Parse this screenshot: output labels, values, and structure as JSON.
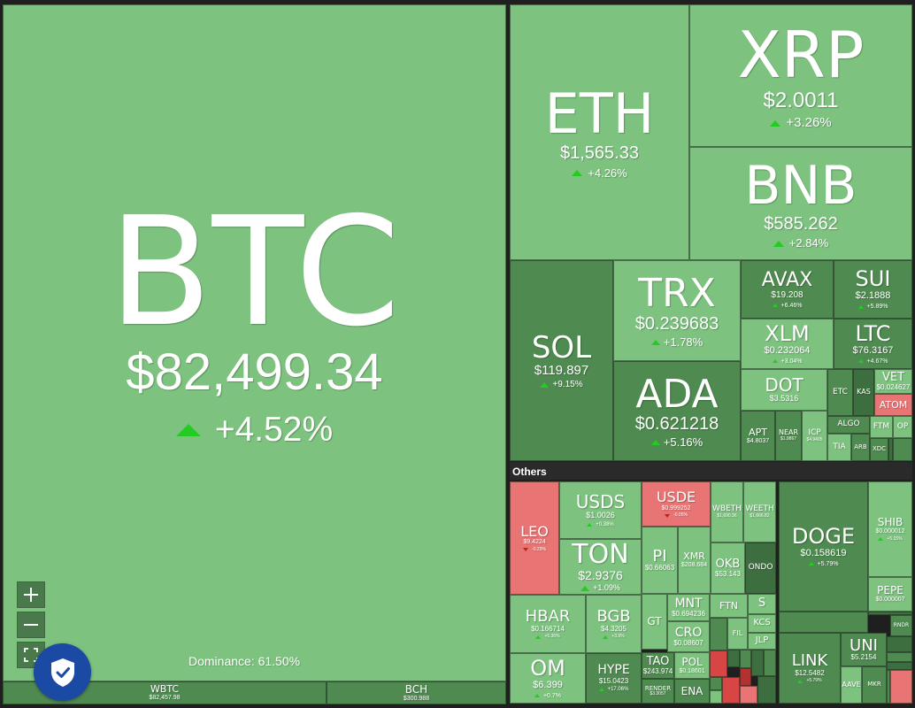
{
  "dominance_text": "Dominance: 61.50%",
  "others_label": "Others",
  "zoom": {
    "in_label": "+",
    "out_label": "−"
  },
  "colors": {
    "up_strong": "#7dc27f",
    "up_mid": "#4f8a50",
    "up_dark": "#3d6e3f",
    "down": "#e97474",
    "arrow_up": "#22cc22"
  },
  "tiles": [
    {
      "sym": "BTC",
      "price": "$82,499.34",
      "chg": "+4.52%",
      "dir": "up"
    },
    {
      "sym": "WBTC",
      "price": "$82,457.98",
      "chg": "",
      "dir": "up"
    },
    {
      "sym": "BCH",
      "price": "$300.988",
      "chg": "",
      "dir": "up"
    },
    {
      "sym": "ETH",
      "price": "$1,565.33",
      "chg": "+4.26%",
      "dir": "up"
    },
    {
      "sym": "XRP",
      "price": "$2.0011",
      "chg": "+3.26%",
      "dir": "up"
    },
    {
      "sym": "BNB",
      "price": "$585.262",
      "chg": "+2.84%",
      "dir": "up"
    },
    {
      "sym": "SOL",
      "price": "$119.897",
      "chg": "+9.15%",
      "dir": "up"
    },
    {
      "sym": "TRX",
      "price": "$0.239683",
      "chg": "+1.78%",
      "dir": "up"
    },
    {
      "sym": "ADA",
      "price": "$0.621218",
      "chg": "+5.16%",
      "dir": "up"
    },
    {
      "sym": "AVAX",
      "price": "$19.208",
      "chg": "+6.46%",
      "dir": "up"
    },
    {
      "sym": "SUI",
      "price": "$2.1888",
      "chg": "+5.89%",
      "dir": "up"
    },
    {
      "sym": "XLM",
      "price": "$0.232064",
      "chg": "+3.04%",
      "dir": "up"
    },
    {
      "sym": "LTC",
      "price": "$76.3167",
      "chg": "+4.67%",
      "dir": "up"
    },
    {
      "sym": "DOT",
      "price": "$3.5316",
      "chg": "",
      "dir": "up"
    },
    {
      "sym": "ETC",
      "price": "",
      "chg": "",
      "dir": "up"
    },
    {
      "sym": "KAS",
      "price": "",
      "chg": "",
      "dir": "up"
    },
    {
      "sym": "VET",
      "price": "$0.024627",
      "chg": "",
      "dir": "up"
    },
    {
      "sym": "ATOM",
      "price": "",
      "chg": "",
      "dir": "down"
    },
    {
      "sym": "APT",
      "price": "$4.8037",
      "chg": "",
      "dir": "up"
    },
    {
      "sym": "NEAR",
      "price": "$1.9867",
      "chg": "",
      "dir": "up"
    },
    {
      "sym": "ICP",
      "price": "$4.9405",
      "chg": "",
      "dir": "up"
    },
    {
      "sym": "ALGO",
      "price": "",
      "chg": "",
      "dir": "up"
    },
    {
      "sym": "TIA",
      "price": "",
      "chg": "",
      "dir": "up"
    },
    {
      "sym": "ARB",
      "price": "",
      "chg": "",
      "dir": "up"
    },
    {
      "sym": "FTM",
      "price": "",
      "chg": "",
      "dir": "up"
    },
    {
      "sym": "OP",
      "price": "",
      "chg": "",
      "dir": "up"
    },
    {
      "sym": "XDC",
      "price": "",
      "chg": "",
      "dir": "up"
    },
    {
      "sym": "LEO",
      "price": "$9.4224",
      "chg": "-0.29%",
      "dir": "down"
    },
    {
      "sym": "USDS",
      "price": "$1.0026",
      "chg": "+0.38%",
      "dir": "up"
    },
    {
      "sym": "USDE",
      "price": "$0.999252",
      "chg": "-0.05%",
      "dir": "down"
    },
    {
      "sym": "WBETH",
      "price": "$1,690.36",
      "chg": "",
      "dir": "up"
    },
    {
      "sym": "WEETH",
      "price": "$1,666.82",
      "chg": "",
      "dir": "up"
    },
    {
      "sym": "TON",
      "price": "$2.9376",
      "chg": "+1.09%",
      "dir": "up"
    },
    {
      "sym": "PI",
      "price": "$0.66063",
      "chg": "",
      "dir": "up"
    },
    {
      "sym": "XMR",
      "price": "$208.684",
      "chg": "",
      "dir": "up"
    },
    {
      "sym": "OKB",
      "price": "$53.143",
      "chg": "",
      "dir": "up"
    },
    {
      "sym": "ONDO",
      "price": "",
      "chg": "",
      "dir": "up"
    },
    {
      "sym": "HBAR",
      "price": "$0.166714",
      "chg": "+5.36%",
      "dir": "up"
    },
    {
      "sym": "BGB",
      "price": "$4.3205",
      "chg": "+3.9%",
      "dir": "up"
    },
    {
      "sym": "GT",
      "price": "",
      "chg": "",
      "dir": "up"
    },
    {
      "sym": "MNT",
      "price": "$0.694236",
      "chg": "",
      "dir": "up"
    },
    {
      "sym": "FTN",
      "price": "",
      "chg": "",
      "dir": "up"
    },
    {
      "sym": "S",
      "price": "",
      "chg": "",
      "dir": "up"
    },
    {
      "sym": "CRO",
      "price": "$0.08607",
      "chg": "",
      "dir": "up"
    },
    {
      "sym": "KCS",
      "price": "",
      "chg": "",
      "dir": "up"
    },
    {
      "sym": "FIL",
      "price": "",
      "chg": "",
      "dir": "up"
    },
    {
      "sym": "JLP",
      "price": "",
      "chg": "",
      "dir": "up"
    },
    {
      "sym": "OM",
      "price": "$6.399",
      "chg": "+0.7%",
      "dir": "up"
    },
    {
      "sym": "HYPE",
      "price": "$15.0423",
      "chg": "+17.06%",
      "dir": "up"
    },
    {
      "sym": "TAO",
      "price": "$243.974",
      "chg": "",
      "dir": "up"
    },
    {
      "sym": "POL",
      "price": "$0.18601",
      "chg": "",
      "dir": "up"
    },
    {
      "sym": "RENDER",
      "price": "$3.3057",
      "chg": "",
      "dir": "up"
    },
    {
      "sym": "ENA",
      "price": "",
      "chg": "",
      "dir": "up"
    },
    {
      "sym": "DOGE",
      "price": "$0.158619",
      "chg": "+5.79%",
      "dir": "up"
    },
    {
      "sym": "SHIB",
      "price": "$0.000012",
      "chg": "+5.15%",
      "dir": "up"
    },
    {
      "sym": "PEPE",
      "price": "$0.000007",
      "chg": "",
      "dir": "up"
    },
    {
      "sym": "LINK",
      "price": "$12.5482",
      "chg": "+5.79%",
      "dir": "up"
    },
    {
      "sym": "UNI",
      "price": "$5.2154",
      "chg": "",
      "dir": "up"
    },
    {
      "sym": "AAVE",
      "price": "",
      "chg": "",
      "dir": "up"
    },
    {
      "sym": "MKR",
      "price": "",
      "chg": "",
      "dir": "up"
    },
    {
      "sym": "RNDR",
      "price": "",
      "chg": "",
      "dir": "up"
    }
  ]
}
